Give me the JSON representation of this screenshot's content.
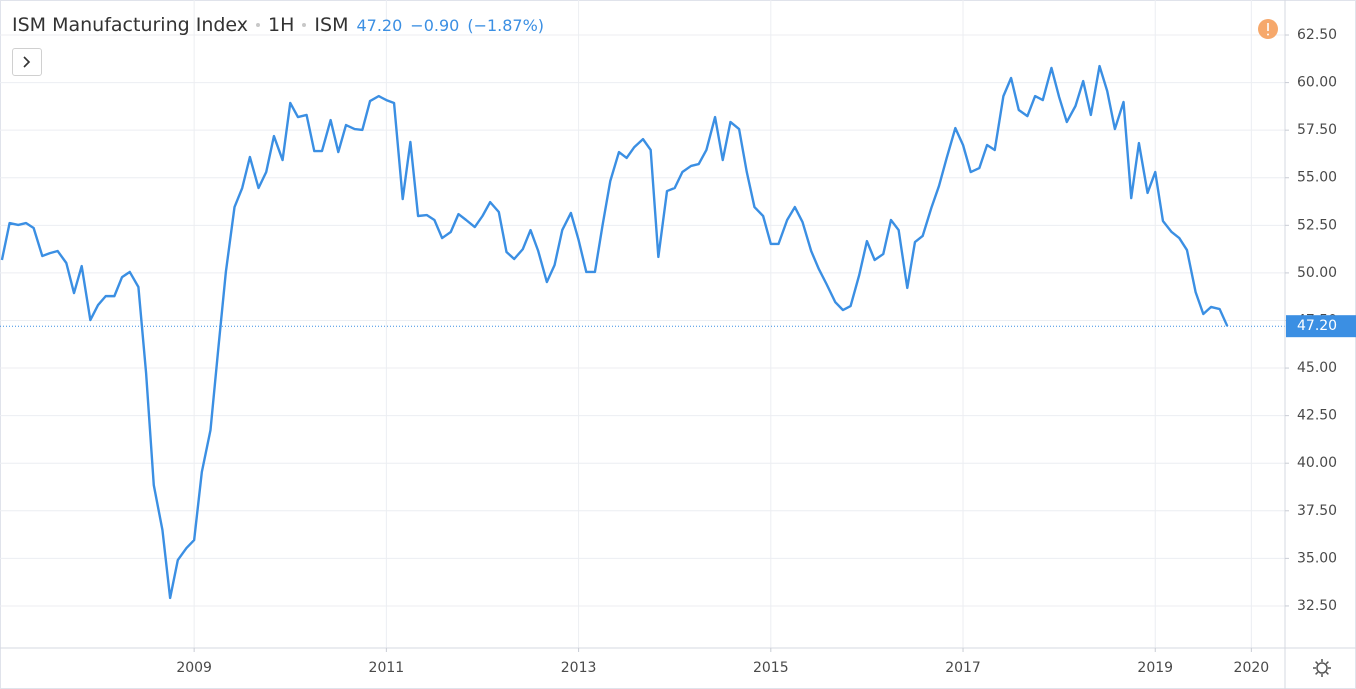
{
  "header": {
    "title": "ISM Manufacturing Index",
    "interval": "1H",
    "exchange": "ISM",
    "last": "47.20",
    "change": "−0.90",
    "change_pct": "(−1.87%)"
  },
  "chart_data": {
    "type": "line",
    "color": "#3b8fe3",
    "grid": true,
    "x": [
      2007,
      2007.08,
      2007.17,
      2007.25,
      2007.33,
      2007.42,
      2007.5,
      2007.58,
      2007.67,
      2007.75,
      2007.83,
      2007.92,
      2008,
      2008.08,
      2008.17,
      2008.25,
      2008.33,
      2008.42,
      2008.5,
      2008.58,
      2008.67,
      2008.75,
      2008.83,
      2008.92,
      2009,
      2009.08,
      2009.17,
      2009.25,
      2009.33,
      2009.42,
      2009.5,
      2009.58,
      2009.67,
      2009.75,
      2009.83,
      2009.92,
      2010,
      2010.08,
      2010.17,
      2010.25,
      2010.33,
      2010.42,
      2010.5,
      2010.58,
      2010.67,
      2010.75,
      2010.83,
      2010.92,
      2011,
      2011.08,
      2011.17,
      2011.25,
      2011.33,
      2011.42,
      2011.5,
      2011.58,
      2011.67,
      2011.75,
      2011.83,
      2011.92,
      2012,
      2012.08,
      2012.17,
      2012.25,
      2012.33,
      2012.42,
      2012.5,
      2012.58,
      2012.67,
      2012.75,
      2012.83,
      2012.92,
      2013,
      2013.08,
      2013.17,
      2013.25,
      2013.33,
      2013.42,
      2013.5,
      2013.58,
      2013.67,
      2013.75,
      2013.83,
      2013.92,
      2014,
      2014.08,
      2014.17,
      2014.25,
      2014.33,
      2014.42,
      2014.5,
      2014.58,
      2014.67,
      2014.75,
      2014.83,
      2014.92,
      2015,
      2015.08,
      2015.17,
      2015.25,
      2015.33,
      2015.42,
      2015.5,
      2015.58,
      2015.67,
      2015.75,
      2015.83,
      2015.92,
      2016,
      2016.08,
      2016.17,
      2016.25,
      2016.33,
      2016.42,
      2016.5,
      2016.58,
      2016.67,
      2016.75,
      2016.83,
      2016.92,
      2017,
      2017.08,
      2017.17,
      2017.25,
      2017.33,
      2017.42,
      2017.5,
      2017.58,
      2017.67,
      2017.75,
      2017.83,
      2017.92,
      2018,
      2018.08,
      2018.17,
      2018.25,
      2018.33,
      2018.42,
      2018.5,
      2018.58,
      2018.67,
      2018.75,
      2018.83,
      2018.92,
      2019,
      2019.08,
      2019.17,
      2019.25,
      2019.33,
      2019.42,
      2019.5,
      2019.58,
      2019.67,
      2019.75
    ],
    "values": [
      50.68,
      52.62,
      52.52,
      52.62,
      52.36,
      50.89,
      51.04,
      51.15,
      50.52,
      48.94,
      50.36,
      47.52,
      48.31,
      48.78,
      48.78,
      49.78,
      50.05,
      49.26,
      44.74,
      38.85,
      36.49,
      32.92,
      34.91,
      35.54,
      35.96,
      39.54,
      41.74,
      45.95,
      50.05,
      53.46,
      54.46,
      56.09,
      54.46,
      55.3,
      57.19,
      55.93,
      58.93,
      58.19,
      58.3,
      56.4,
      56.4,
      58.03,
      56.35,
      57.77,
      57.56,
      57.51,
      59.03,
      59.29,
      59.08,
      58.93,
      53.88,
      56.88,
      52.99,
      53.04,
      52.78,
      51.83,
      52.15,
      53.09,
      52.78,
      52.41,
      52.99,
      53.72,
      53.2,
      51.1,
      50.73,
      51.25,
      52.25,
      51.15,
      49.52,
      50.41,
      52.25,
      53.15,
      51.73,
      50.05,
      50.05,
      52.52,
      54.83,
      56.35,
      56.04,
      56.61,
      57.03,
      56.46,
      50.84,
      54.3,
      54.46,
      55.3,
      55.62,
      55.72,
      56.46,
      58.19,
      55.93,
      57.93,
      57.56,
      55.3,
      53.46,
      52.99,
      51.52,
      51.52,
      52.78,
      53.46,
      52.67,
      51.15,
      50.2,
      49.41,
      48.47,
      48.05,
      48.26,
      49.89,
      51.67,
      50.68,
      50.99,
      52.78,
      52.25,
      49.21,
      51.62,
      51.94,
      53.41,
      54.57,
      56.04,
      57.61,
      56.72,
      55.3,
      55.51,
      56.72,
      56.46,
      59.29,
      60.24,
      58.56,
      58.24,
      59.29,
      59.08,
      60.77,
      59.24,
      57.93,
      58.77,
      60.08,
      58.3,
      60.87,
      59.56,
      57.56,
      58.98,
      53.93,
      56.82,
      54.2,
      55.3,
      52.73,
      52.15,
      51.83,
      51.2,
      48.99,
      47.84,
      48.21,
      48.1,
      47.2
    ],
    "last_price": {
      "value": 47.2,
      "label": "47.20"
    },
    "xlim": [
      2006.98,
      2020.35
    ],
    "xticks": [
      2009,
      2011,
      2013,
      2015,
      2017,
      2019,
      2020
    ],
    "ylim": [
      30.29,
      64.34
    ],
    "yticks": [
      {
        "value": 32.5,
        "label": "32.50"
      },
      {
        "value": 35,
        "label": "35.00"
      },
      {
        "value": 37.5,
        "label": "37.50"
      },
      {
        "value": 40,
        "label": "40.00"
      },
      {
        "value": 42.5,
        "label": "42.50"
      },
      {
        "value": 45,
        "label": "45.00"
      },
      {
        "value": 47.5,
        "label": "47.50"
      },
      {
        "value": 50,
        "label": "50.00"
      },
      {
        "value": 52.5,
        "label": "52.50"
      },
      {
        "value": 55,
        "label": "55.00"
      },
      {
        "value": 57.5,
        "label": "57.50"
      },
      {
        "value": 60,
        "label": "60.00"
      },
      {
        "value": 62.5,
        "label": "62.50"
      }
    ]
  }
}
